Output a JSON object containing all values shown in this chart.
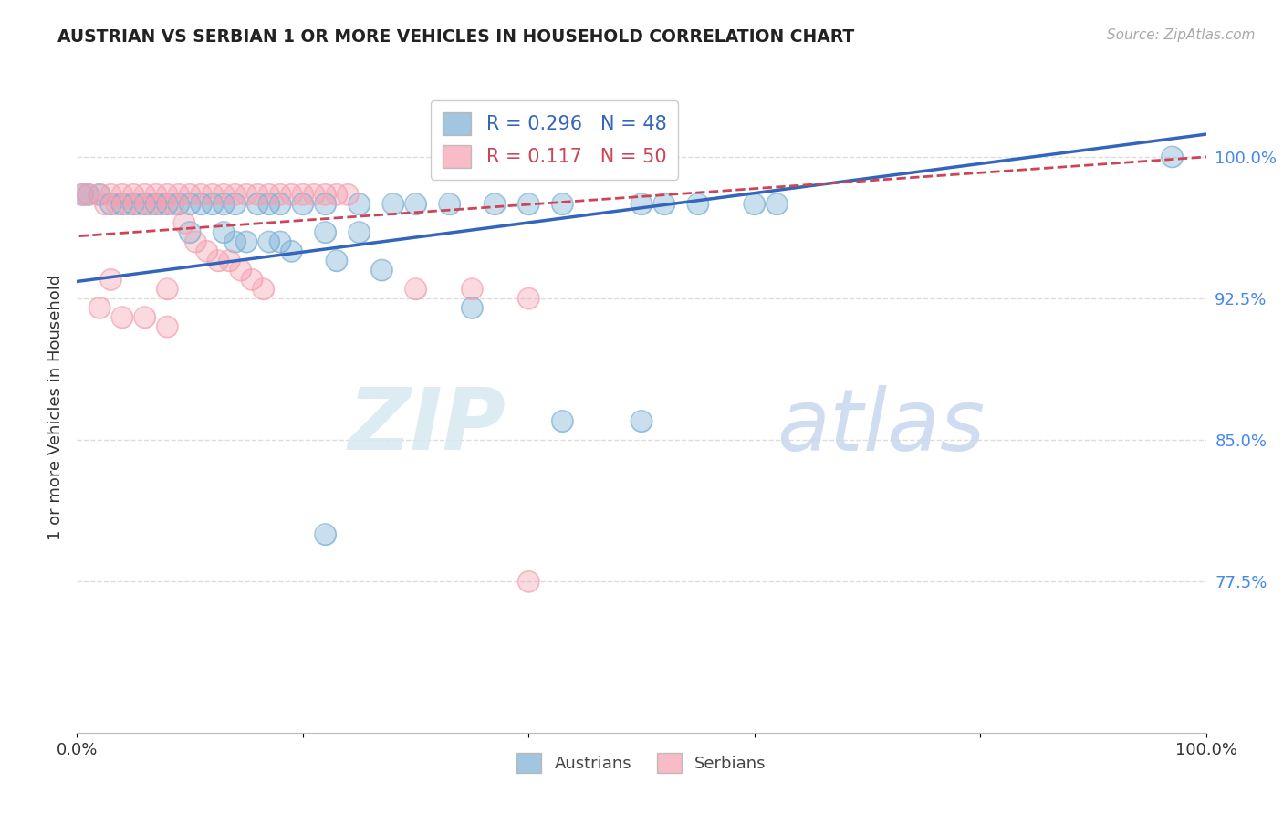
{
  "title": "AUSTRIAN VS SERBIAN 1 OR MORE VEHICLES IN HOUSEHOLD CORRELATION CHART",
  "source": "Source: ZipAtlas.com",
  "ylabel": "1 or more Vehicles in Household",
  "xlim": [
    0.0,
    1.0
  ],
  "ylim": [
    0.695,
    1.04
  ],
  "ytick_vals": [
    0.775,
    0.85,
    0.925,
    1.0
  ],
  "ytick_labels": [
    "77.5%",
    "85.0%",
    "92.5%",
    "100.0%"
  ],
  "xtick_vals": [
    0.0,
    0.2,
    0.4,
    0.6,
    0.8,
    1.0
  ],
  "xtick_labels": [
    "0.0%",
    "",
    "",
    "",
    "",
    "100.0%"
  ],
  "austrians_x": [
    0.005,
    0.01,
    0.02,
    0.03,
    0.04,
    0.05,
    0.06,
    0.07,
    0.08,
    0.09,
    0.1,
    0.11,
    0.12,
    0.13,
    0.14,
    0.16,
    0.17,
    0.18,
    0.2,
    0.22,
    0.25,
    0.28,
    0.3,
    0.33,
    0.37,
    0.4,
    0.43,
    0.5,
    0.52,
    0.55,
    0.6,
    0.62,
    0.18,
    0.22,
    0.25,
    0.1,
    0.13,
    0.14,
    0.15,
    0.17,
    0.19,
    0.23,
    0.27,
    0.35,
    0.43,
    0.5,
    0.97,
    0.22
  ],
  "austrians_y": [
    0.98,
    0.98,
    0.98,
    0.975,
    0.975,
    0.975,
    0.975,
    0.975,
    0.975,
    0.975,
    0.975,
    0.975,
    0.975,
    0.975,
    0.975,
    0.975,
    0.975,
    0.975,
    0.975,
    0.975,
    0.975,
    0.975,
    0.975,
    0.975,
    0.975,
    0.975,
    0.975,
    0.975,
    0.975,
    0.975,
    0.975,
    0.975,
    0.955,
    0.96,
    0.96,
    0.96,
    0.96,
    0.955,
    0.955,
    0.955,
    0.95,
    0.945,
    0.94,
    0.92,
    0.86,
    0.86,
    1.0,
    0.8
  ],
  "serbians_x": [
    0.005,
    0.01,
    0.02,
    0.03,
    0.04,
    0.05,
    0.06,
    0.07,
    0.08,
    0.09,
    0.1,
    0.11,
    0.12,
    0.13,
    0.14,
    0.15,
    0.16,
    0.17,
    0.18,
    0.19,
    0.2,
    0.21,
    0.22,
    0.23,
    0.24,
    0.025,
    0.035,
    0.045,
    0.055,
    0.065,
    0.075,
    0.085,
    0.095,
    0.105,
    0.115,
    0.125,
    0.135,
    0.145,
    0.155,
    0.165,
    0.3,
    0.35,
    0.4,
    0.02,
    0.04,
    0.06,
    0.08,
    0.03,
    0.08,
    0.4
  ],
  "serbians_y": [
    0.98,
    0.98,
    0.98,
    0.98,
    0.98,
    0.98,
    0.98,
    0.98,
    0.98,
    0.98,
    0.98,
    0.98,
    0.98,
    0.98,
    0.98,
    0.98,
    0.98,
    0.98,
    0.98,
    0.98,
    0.98,
    0.98,
    0.98,
    0.98,
    0.98,
    0.975,
    0.975,
    0.975,
    0.975,
    0.975,
    0.975,
    0.975,
    0.965,
    0.955,
    0.95,
    0.945,
    0.945,
    0.94,
    0.935,
    0.93,
    0.93,
    0.93,
    0.925,
    0.92,
    0.915,
    0.915,
    0.91,
    0.935,
    0.93,
    0.775
  ],
  "blue_color": "#7BAFD4",
  "pink_color": "#F4A0B0",
  "blue_line_color": "#3366BB",
  "pink_line_color": "#CC4455",
  "R_austrians": 0.296,
  "N_austrians": 48,
  "R_serbians": 0.117,
  "N_serbians": 50,
  "watermark_zip": "ZIP",
  "watermark_atlas": "atlas",
  "background_color": "#FFFFFF",
  "grid_color": "#DDDDDD"
}
